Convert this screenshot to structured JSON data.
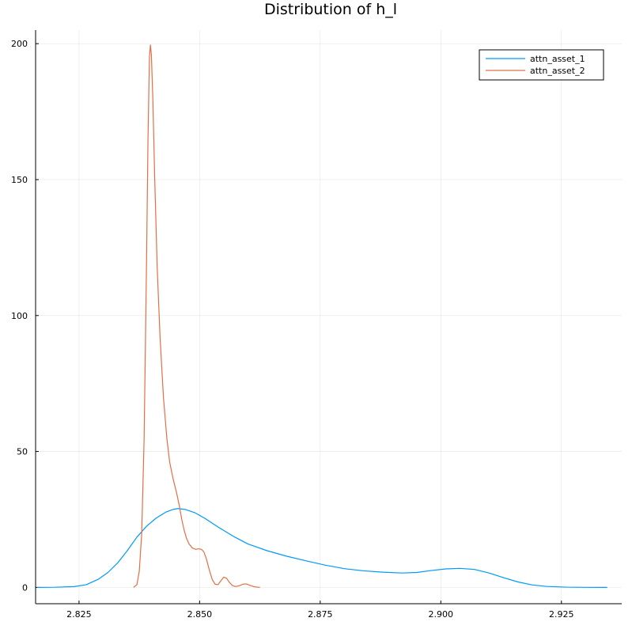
{
  "chart_data": {
    "type": "line",
    "title": "Distribution of h_l",
    "xlabel": "",
    "ylabel": "",
    "xlim": [
      2.816,
      2.9375
    ],
    "ylim": [
      -6,
      205
    ],
    "x_ticks": [
      2.825,
      2.85,
      2.875,
      2.9,
      2.925
    ],
    "x_tick_labels": [
      "2.825",
      "2.850",
      "2.875",
      "2.900",
      "2.925"
    ],
    "y_ticks": [
      0,
      50,
      100,
      150,
      200
    ],
    "y_tick_labels": [
      "0",
      "50",
      "100",
      "150",
      "200"
    ],
    "grid": true,
    "legend_position": "top-right",
    "series": [
      {
        "name": "attn_asset_1",
        "color": "#009af9",
        "points": [
          [
            2.8163,
            0
          ],
          [
            2.82,
            0.05
          ],
          [
            2.824,
            0.3
          ],
          [
            2.8265,
            1.0
          ],
          [
            2.829,
            3.0
          ],
          [
            2.831,
            5.5
          ],
          [
            2.833,
            9.0
          ],
          [
            2.835,
            13.5
          ],
          [
            2.837,
            18.5
          ],
          [
            2.839,
            22.5
          ],
          [
            2.841,
            25.5
          ],
          [
            2.843,
            27.7
          ],
          [
            2.8445,
            28.7
          ],
          [
            2.8455,
            29.0
          ],
          [
            2.847,
            28.7
          ],
          [
            2.849,
            27.5
          ],
          [
            2.851,
            25.5
          ],
          [
            2.854,
            22.0
          ],
          [
            2.857,
            18.8
          ],
          [
            2.86,
            16.0
          ],
          [
            2.864,
            13.5
          ],
          [
            2.868,
            11.5
          ],
          [
            2.872,
            9.8
          ],
          [
            2.876,
            8.2
          ],
          [
            2.88,
            6.9
          ],
          [
            2.884,
            6.1
          ],
          [
            2.888,
            5.6
          ],
          [
            2.892,
            5.3
          ],
          [
            2.895,
            5.5
          ],
          [
            2.898,
            6.2
          ],
          [
            2.901,
            6.8
          ],
          [
            2.904,
            7.0
          ],
          [
            2.907,
            6.6
          ],
          [
            2.91,
            5.3
          ],
          [
            2.913,
            3.6
          ],
          [
            2.916,
            2.0
          ],
          [
            2.919,
            0.9
          ],
          [
            2.922,
            0.35
          ],
          [
            2.926,
            0.1
          ],
          [
            2.93,
            0.02
          ],
          [
            2.9345,
            0
          ]
        ]
      },
      {
        "name": "attn_asset_2",
        "color": "#e26f46",
        "points": [
          [
            2.8363,
            0
          ],
          [
            2.837,
            1.0
          ],
          [
            2.8375,
            6.0
          ],
          [
            2.838,
            20.0
          ],
          [
            2.8385,
            55.0
          ],
          [
            2.839,
            120.0
          ],
          [
            2.8393,
            165.0
          ],
          [
            2.8396,
            195.0
          ],
          [
            2.8398,
            199.5
          ],
          [
            2.84,
            196.0
          ],
          [
            2.8403,
            180.0
          ],
          [
            2.8407,
            150.0
          ],
          [
            2.8412,
            118.0
          ],
          [
            2.8418,
            92.0
          ],
          [
            2.8425,
            70.0
          ],
          [
            2.8432,
            55.0
          ],
          [
            2.8438,
            46.0
          ],
          [
            2.8445,
            40.0
          ],
          [
            2.8452,
            35.0
          ],
          [
            2.8458,
            30.0
          ],
          [
            2.8463,
            25.0
          ],
          [
            2.8468,
            21.0
          ],
          [
            2.8473,
            18.0
          ],
          [
            2.8478,
            16.0
          ],
          [
            2.8485,
            14.5
          ],
          [
            2.8492,
            14.0
          ],
          [
            2.8498,
            14.2
          ],
          [
            2.8504,
            14.0
          ],
          [
            2.8509,
            13.0
          ],
          [
            2.8514,
            10.5
          ],
          [
            2.852,
            6.5
          ],
          [
            2.8526,
            3.0
          ],
          [
            2.8532,
            1.2
          ],
          [
            2.8538,
            1.0
          ],
          [
            2.8544,
            2.4
          ],
          [
            2.855,
            3.8
          ],
          [
            2.8556,
            3.3
          ],
          [
            2.8562,
            1.8
          ],
          [
            2.8568,
            0.7
          ],
          [
            2.8574,
            0.3
          ],
          [
            2.8582,
            0.6
          ],
          [
            2.859,
            1.2
          ],
          [
            2.8597,
            1.3
          ],
          [
            2.8604,
            0.8
          ],
          [
            2.8612,
            0.3
          ],
          [
            2.862,
            0.1
          ],
          [
            2.8625,
            0
          ]
        ]
      }
    ]
  }
}
